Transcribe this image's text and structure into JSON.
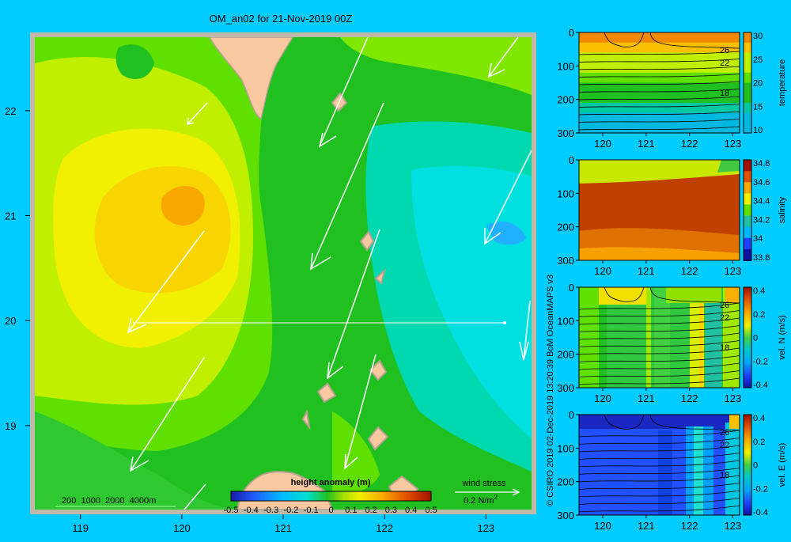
{
  "map": {
    "title": "OM_an02 for 21-Nov-2019 00Z",
    "lon_ticks": [
      119,
      120,
      121,
      122,
      123
    ],
    "lat_ticks": [
      22,
      21,
      20,
      19
    ],
    "lon_range": [
      118.55,
      123.45
    ],
    "lat_range": [
      18.2,
      22.7
    ],
    "bathymetry_legend": "200  1000  2000  4000m",
    "colorbar_title": "height anomaly  (m)",
    "colorbar_ticks": [
      "-0.5",
      "-0.4",
      "-0.3",
      "-0.2",
      "-0.1",
      "0",
      "0.1",
      "0.2",
      "0.3",
      "0.4",
      "0.5"
    ],
    "wind_label": "wind stress",
    "wind_unit": "0.2 N/m",
    "wind_unit_sup": "2",
    "section_latitude": 20,
    "colors": {
      "background": "#00ccff",
      "land": "#f8c8a0",
      "frame": "#c0b8a8",
      "wind_arrow": "#ffffff"
    }
  },
  "side_label": "© CSIRO 2019   02-Dec-2019 13:20:39 BoM OceanMAPS v3",
  "panels": [
    {
      "id": "temperature",
      "label": "temperature",
      "cb_ticks": [
        "30",
        "25",
        "20",
        "15",
        "10"
      ],
      "contour_labels": [
        "26",
        "22",
        "18"
      ]
    },
    {
      "id": "salinity",
      "label": "salinity",
      "cb_ticks": [
        "34.8",
        "34.6",
        "34.4",
        "34.2",
        "34",
        "33.8"
      ],
      "contour_labels": []
    },
    {
      "id": "veln",
      "label": "vel. N  (m/s)",
      "cb_ticks": [
        "0.4",
        "0.2",
        "0",
        "-0.2",
        "-0.4"
      ],
      "contour_labels": [
        "26",
        "22",
        "18"
      ]
    },
    {
      "id": "vele",
      "label": "vel. E  (m/s)",
      "cb_ticks": [
        "0.4",
        "0.2",
        "0",
        "-0.2",
        "-0.4"
      ],
      "contour_labels": [
        "26",
        "22",
        "18"
      ]
    }
  ],
  "section_axes": {
    "depth_ticks": [
      "0",
      "100",
      "200",
      "300"
    ],
    "lon_ticks": [
      "120",
      "121",
      "122",
      "123"
    ]
  }
}
